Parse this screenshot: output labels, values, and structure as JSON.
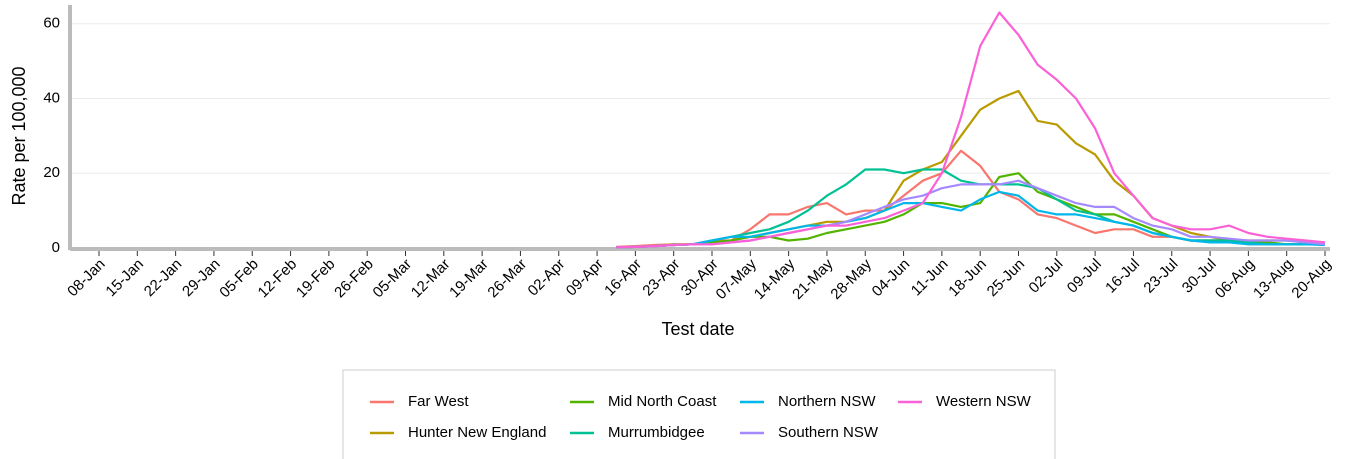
{
  "chart_data": {
    "type": "line",
    "x_label": "Test date",
    "y_label": "Rate per 100,000",
    "categories": [
      "08-Jan",
      null,
      "15-Jan",
      null,
      "22-Jan",
      null,
      "29-Jan",
      null,
      "05-Feb",
      null,
      "12-Feb",
      null,
      "19-Feb",
      null,
      "26-Feb",
      null,
      "05-Mar",
      null,
      "12-Mar",
      null,
      "19-Mar",
      null,
      "26-Mar",
      null,
      "02-Apr",
      null,
      "09-Apr",
      null,
      "16-Apr",
      null,
      "23-Apr",
      null,
      "30-Apr",
      null,
      "07-May",
      null,
      "14-May",
      null,
      "21-May",
      null,
      "28-May",
      null,
      "04-Jun",
      null,
      "11-Jun",
      null,
      "18-Jun",
      null,
      "25-Jun",
      null,
      "02-Jul",
      null,
      "09-Jul",
      null,
      "16-Jul",
      null,
      "23-Jul",
      null,
      "30-Jul",
      null,
      "06-Aug",
      null,
      "13-Aug",
      null,
      "20-Aug"
    ],
    "ylim": [
      0,
      65
    ],
    "yticks": [
      0,
      20,
      40,
      60
    ],
    "grid": true,
    "legend": "bottom",
    "series": [
      {
        "name": "Far West",
        "color": "#F8766D",
        "values": [
          null,
          null,
          null,
          null,
          null,
          null,
          null,
          null,
          null,
          null,
          null,
          null,
          null,
          null,
          null,
          null,
          null,
          null,
          null,
          null,
          null,
          null,
          null,
          null,
          null,
          null,
          null,
          0.3,
          0.5,
          0.8,
          1,
          1,
          2,
          2,
          5,
          9,
          9,
          11,
          12,
          9,
          10,
          10,
          14,
          18,
          20,
          26,
          22,
          15,
          13,
          9,
          8,
          6,
          4,
          5,
          5,
          3,
          3,
          2,
          2,
          2,
          1,
          1,
          1,
          1,
          1
        ]
      },
      {
        "name": "Hunter New England",
        "color": "#B99A00",
        "values": [
          null,
          null,
          null,
          null,
          null,
          null,
          null,
          null,
          null,
          null,
          null,
          null,
          null,
          null,
          null,
          null,
          null,
          null,
          null,
          null,
          null,
          null,
          null,
          null,
          null,
          null,
          null,
          0.2,
          0.3,
          0.5,
          1,
          1,
          1.5,
          2,
          3,
          4,
          5,
          6,
          7,
          7,
          8,
          10,
          18,
          21,
          23,
          30,
          37,
          40,
          42,
          34,
          33,
          28,
          25,
          18,
          14,
          8,
          6,
          4,
          3,
          2,
          2,
          2,
          2,
          1.5,
          1
        ]
      },
      {
        "name": "Mid North Coast",
        "color": "#53B400",
        "values": [
          null,
          null,
          null,
          null,
          null,
          null,
          null,
          null,
          null,
          null,
          null,
          null,
          null,
          null,
          null,
          null,
          null,
          null,
          null,
          null,
          null,
          null,
          null,
          null,
          null,
          null,
          null,
          0.2,
          0.3,
          0.5,
          0.8,
          1,
          1.5,
          2,
          3,
          3,
          2,
          2.5,
          4,
          5,
          6,
          7,
          9,
          12,
          12,
          11,
          12,
          19,
          20,
          15,
          13,
          11,
          9,
          9,
          7,
          5,
          3,
          2,
          2,
          2,
          1.5,
          1.5,
          1,
          1,
          1
        ]
      },
      {
        "name": "Murrumbidgee",
        "color": "#00C094",
        "values": [
          null,
          null,
          null,
          null,
          null,
          null,
          null,
          null,
          null,
          null,
          null,
          null,
          null,
          null,
          null,
          null,
          null,
          null,
          null,
          null,
          null,
          null,
          null,
          null,
          null,
          null,
          null,
          0.2,
          0.3,
          0.5,
          0.8,
          1,
          2,
          3,
          4,
          5,
          7,
          10,
          14,
          17,
          21,
          21,
          20,
          21,
          21,
          18,
          17,
          17,
          17,
          16,
          13,
          10,
          9,
          7,
          6,
          4,
          3,
          2,
          2,
          2,
          1.5,
          1,
          1,
          1,
          1
        ]
      },
      {
        "name": "Northern NSW",
        "color": "#00B6EB",
        "values": [
          null,
          null,
          null,
          null,
          null,
          null,
          null,
          null,
          null,
          null,
          null,
          null,
          null,
          null,
          null,
          null,
          null,
          null,
          null,
          null,
          null,
          null,
          null,
          null,
          null,
          null,
          null,
          0.2,
          0.3,
          0.5,
          0.8,
          1,
          2,
          3,
          3,
          4,
          5,
          6,
          6,
          7,
          8,
          10,
          12,
          12,
          11,
          10,
          13,
          15,
          14,
          10,
          9,
          9,
          8,
          7,
          6,
          4,
          3,
          2,
          1.5,
          1.5,
          1,
          1,
          1,
          1,
          0.8
        ]
      },
      {
        "name": "Southern NSW",
        "color": "#A58AFF",
        "values": [
          null,
          null,
          null,
          null,
          null,
          null,
          null,
          null,
          null,
          null,
          null,
          null,
          null,
          null,
          null,
          null,
          null,
          null,
          null,
          null,
          null,
          null,
          null,
          null,
          null,
          null,
          null,
          0.2,
          0.3,
          0.5,
          0.8,
          1,
          1,
          1.5,
          2,
          3,
          4,
          5,
          6,
          7,
          9,
          11,
          13,
          14,
          16,
          17,
          17,
          17,
          18,
          16,
          14,
          12,
          11,
          11,
          8,
          6,
          5,
          3,
          3,
          2.5,
          2,
          2,
          2,
          1.5,
          1
        ]
      },
      {
        "name": "Western NSW",
        "color": "#FB61D7",
        "values": [
          null,
          null,
          null,
          null,
          null,
          null,
          null,
          null,
          null,
          null,
          null,
          null,
          null,
          null,
          null,
          null,
          null,
          null,
          null,
          null,
          null,
          null,
          null,
          null,
          null,
          null,
          null,
          0.2,
          0.3,
          0.5,
          0.8,
          1,
          1,
          1.5,
          2,
          3,
          4,
          5,
          6,
          6,
          7,
          8,
          10,
          12,
          20,
          35,
          54,
          63,
          57,
          49,
          45,
          40,
          32,
          20,
          14,
          8,
          6,
          5,
          5,
          6,
          4,
          3,
          2.5,
          2,
          1.5
        ]
      }
    ]
  }
}
